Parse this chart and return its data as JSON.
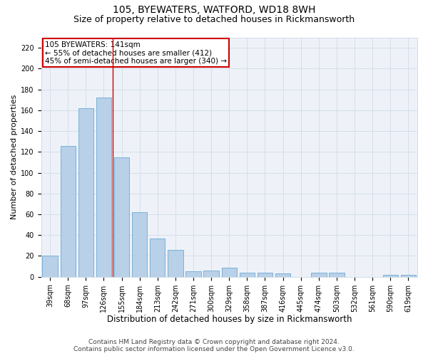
{
  "title": "105, BYEWATERS, WATFORD, WD18 8WH",
  "subtitle": "Size of property relative to detached houses in Rickmansworth",
  "xlabel": "Distribution of detached houses by size in Rickmansworth",
  "ylabel": "Number of detached properties",
  "categories": [
    "39sqm",
    "68sqm",
    "97sqm",
    "126sqm",
    "155sqm",
    "184sqm",
    "213sqm",
    "242sqm",
    "271sqm",
    "300sqm",
    "329sqm",
    "358sqm",
    "387sqm",
    "416sqm",
    "445sqm",
    "474sqm",
    "503sqm",
    "532sqm",
    "561sqm",
    "590sqm",
    "619sqm"
  ],
  "values": [
    20,
    126,
    162,
    172,
    115,
    62,
    37,
    26,
    5,
    6,
    9,
    4,
    4,
    3,
    0,
    4,
    4,
    0,
    0,
    2,
    2
  ],
  "bar_color": "#b8d0e8",
  "bar_edge_color": "#6aaad4",
  "grid_color": "#d0dce8",
  "background_color": "#eef2f8",
  "annotation_box_text": "105 BYEWATERS: 141sqm\n← 55% of detached houses are smaller (412)\n45% of semi-detached houses are larger (340) →",
  "annotation_box_color": "#ffffff",
  "annotation_box_edge_color": "#cc0000",
  "vline_x_index": 3,
  "vline_color": "#cc0000",
  "ylim": [
    0,
    230
  ],
  "yticks": [
    0,
    20,
    40,
    60,
    80,
    100,
    120,
    140,
    160,
    180,
    200,
    220
  ],
  "footer1": "Contains HM Land Registry data © Crown copyright and database right 2024.",
  "footer2": "Contains public sector information licensed under the Open Government Licence v3.0.",
  "title_fontsize": 10,
  "subtitle_fontsize": 9,
  "xlabel_fontsize": 8.5,
  "ylabel_fontsize": 8,
  "tick_fontsize": 7,
  "footer_fontsize": 6.5,
  "annotation_fontsize": 7.5
}
